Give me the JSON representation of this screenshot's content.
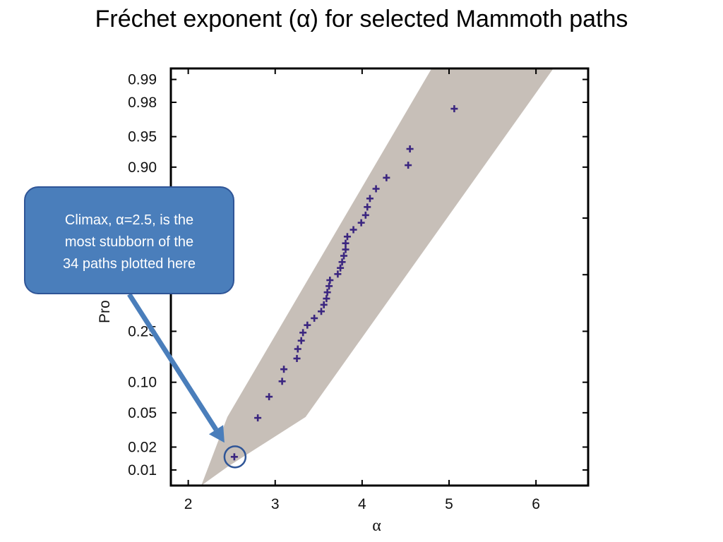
{
  "page": {
    "title": "Fréchet  exponent (α) for selected Mammoth paths"
  },
  "callout": {
    "lines": [
      "Climax, α=2.5, is the",
      "most stubborn of the",
      "34 paths plotted here"
    ]
  },
  "colors": {
    "band": "#c7bfb8",
    "marker": "#3b2680",
    "callout_fill": "#4a7ebb",
    "callout_border": "#2f5597",
    "arrow": "#4a7ebb",
    "highlight_circle": "#2f5597"
  },
  "chart_data": {
    "type": "scatter",
    "title": "",
    "xlabel": "α",
    "ylabel": "Pro",
    "xlim": [
      1.8,
      6.6
    ],
    "y_scale": "probability",
    "ylim": [
      0.006,
      0.993
    ],
    "x_ticks": [
      2,
      3,
      4,
      5,
      6
    ],
    "y_ticks": [
      0.01,
      0.02,
      0.05,
      0.1,
      0.25,
      0.5,
      0.75,
      0.9,
      0.95,
      0.98,
      0.99
    ],
    "y_tick_labels": [
      "0.01",
      "0.02",
      "0.05",
      "0.10",
      "0.25",
      "",
      "",
      "0.90",
      "0.95",
      "0.98",
      "0.99"
    ],
    "y_label_visible": [
      "0.01",
      "0.02",
      "0.05",
      "0.10",
      "0.25",
      "0.90",
      "0.95",
      "0.98",
      "0.99"
    ],
    "band": {
      "upper": [
        [
          2.15,
          0.006
        ],
        [
          2.45,
          0.045
        ],
        [
          4.8,
          0.993
        ],
        [
          6.2,
          0.993
        ],
        [
          3.35,
          0.045
        ],
        [
          2.45,
          0.011
        ]
      ],
      "description": "shaded confidence band"
    },
    "highlight": {
      "x": 2.53,
      "y": 0.015,
      "label": "Climax"
    },
    "series": [
      {
        "marker": "+",
        "points": [
          [
            2.53,
            0.015
          ],
          [
            2.8,
            0.044
          ],
          [
            2.93,
            0.073
          ],
          [
            3.08,
            0.102
          ],
          [
            3.1,
            0.13
          ],
          [
            3.25,
            0.159
          ],
          [
            3.26,
            0.188
          ],
          [
            3.3,
            0.216
          ],
          [
            3.32,
            0.245
          ],
          [
            3.37,
            0.274
          ],
          [
            3.45,
            0.302
          ],
          [
            3.53,
            0.331
          ],
          [
            3.56,
            0.36
          ],
          [
            3.59,
            0.388
          ],
          [
            3.6,
            0.417
          ],
          [
            3.62,
            0.446
          ],
          [
            3.63,
            0.474
          ],
          [
            3.72,
            0.503
          ],
          [
            3.75,
            0.532
          ],
          [
            3.77,
            0.56
          ],
          [
            3.79,
            0.589
          ],
          [
            3.81,
            0.618
          ],
          [
            3.81,
            0.646
          ],
          [
            3.83,
            0.675
          ],
          [
            3.9,
            0.704
          ],
          [
            3.99,
            0.732
          ],
          [
            4.04,
            0.761
          ],
          [
            4.06,
            0.79
          ],
          [
            4.09,
            0.818
          ],
          [
            4.16,
            0.847
          ],
          [
            4.28,
            0.876
          ],
          [
            4.53,
            0.904
          ],
          [
            4.55,
            0.933
          ],
          [
            5.06,
            0.976
          ]
        ]
      }
    ]
  }
}
